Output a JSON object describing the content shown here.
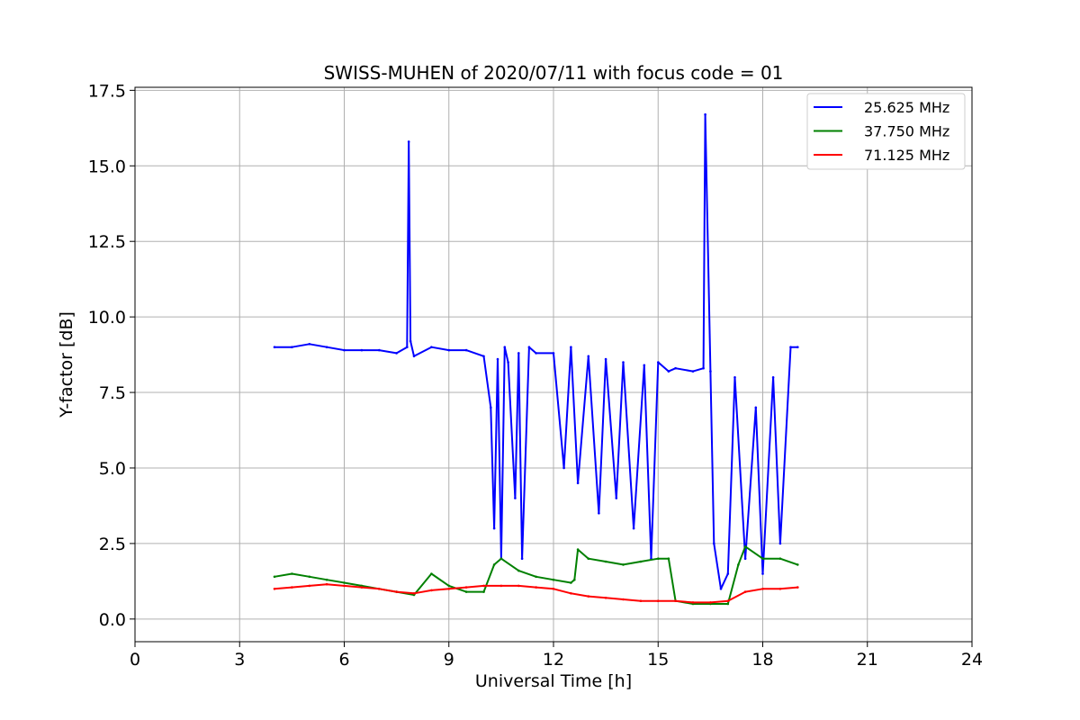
{
  "chart_data": {
    "type": "line",
    "title": "SWISS-MUHEN of 2020/07/11 with focus code = 01",
    "xlabel": "Universal Time [h]",
    "ylabel": "Y-factor [dB]",
    "xlim": [
      0,
      24
    ],
    "ylim": [
      -0.75,
      17.6
    ],
    "xticks": [
      0,
      3,
      6,
      9,
      12,
      15,
      18,
      21,
      24
    ],
    "xtick_labels": [
      "0",
      "3",
      "6",
      "9",
      "12",
      "15",
      "18",
      "21",
      "24"
    ],
    "yticks": [
      0,
      2.5,
      5,
      7.5,
      10,
      12.5,
      15,
      17.5
    ],
    "ytick_labels": [
      "0.0",
      "2.5",
      "5.0",
      "7.5",
      "10.0",
      "12.5",
      "15.0",
      "17.5"
    ],
    "grid": true,
    "legend_position": "top-right",
    "series": [
      {
        "name": "25.625 MHz",
        "color": "#0000ff",
        "x": [
          4.0,
          4.5,
          5.0,
          5.5,
          6.0,
          6.5,
          7.0,
          7.5,
          7.8,
          7.85,
          7.9,
          8.0,
          8.5,
          9.0,
          9.5,
          10.0,
          10.2,
          10.3,
          10.4,
          10.5,
          10.6,
          10.7,
          10.9,
          11.0,
          11.1,
          11.3,
          11.5,
          12.0,
          12.3,
          12.5,
          12.7,
          13.0,
          13.3,
          13.5,
          13.8,
          14.0,
          14.3,
          14.6,
          14.8,
          15.0,
          15.3,
          15.5,
          16.0,
          16.3,
          16.35,
          16.5,
          16.6,
          16.8,
          17.0,
          17.2,
          17.5,
          17.8,
          18.0,
          18.3,
          18.5,
          18.8,
          19.0
        ],
        "y": [
          9.0,
          9.0,
          9.1,
          9.0,
          8.9,
          8.9,
          8.9,
          8.8,
          9.0,
          15.8,
          9.2,
          8.7,
          9.0,
          8.9,
          8.9,
          8.7,
          7.0,
          3.0,
          8.6,
          2.0,
          9.0,
          8.5,
          4.0,
          8.8,
          2.0,
          9.0,
          8.8,
          8.8,
          5.0,
          9.0,
          4.5,
          8.7,
          3.5,
          8.6,
          4.0,
          8.5,
          3.0,
          8.4,
          2.0,
          8.5,
          8.2,
          8.3,
          8.2,
          8.3,
          16.7,
          8.2,
          2.5,
          1.0,
          1.5,
          8.0,
          2.0,
          7.0,
          1.5,
          8.0,
          2.5,
          9.0,
          9.0
        ]
      },
      {
        "name": "37.750 MHz",
        "color": "#008000",
        "x": [
          4.0,
          4.5,
          5.0,
          5.5,
          6.0,
          6.5,
          7.0,
          7.5,
          8.0,
          8.5,
          9.0,
          9.5,
          10.0,
          10.3,
          10.5,
          11.0,
          11.5,
          12.0,
          12.5,
          12.6,
          12.7,
          13.0,
          13.5,
          14.0,
          14.5,
          15.0,
          15.3,
          15.5,
          16.0,
          16.5,
          17.0,
          17.3,
          17.5,
          18.0,
          18.5,
          19.0
        ],
        "y": [
          1.4,
          1.5,
          1.4,
          1.3,
          1.2,
          1.1,
          1.0,
          0.9,
          0.8,
          1.5,
          1.1,
          0.9,
          0.9,
          1.8,
          2.0,
          1.6,
          1.4,
          1.3,
          1.2,
          1.3,
          2.3,
          2.0,
          1.9,
          1.8,
          1.9,
          2.0,
          2.0,
          0.6,
          0.5,
          0.5,
          0.5,
          1.8,
          2.4,
          2.0,
          2.0,
          1.8
        ]
      },
      {
        "name": "71.125 MHz",
        "color": "#ff0000",
        "x": [
          4.0,
          4.5,
          5.0,
          5.5,
          6.0,
          6.5,
          7.0,
          7.5,
          8.0,
          8.5,
          9.0,
          9.5,
          10.0,
          10.5,
          11.0,
          11.5,
          12.0,
          12.5,
          13.0,
          13.5,
          14.0,
          14.5,
          15.0,
          15.5,
          16.0,
          16.5,
          17.0,
          17.5,
          18.0,
          18.5,
          19.0
        ],
        "y": [
          1.0,
          1.05,
          1.1,
          1.15,
          1.1,
          1.05,
          1.0,
          0.9,
          0.85,
          0.95,
          1.0,
          1.05,
          1.1,
          1.1,
          1.1,
          1.05,
          1.0,
          0.85,
          0.75,
          0.7,
          0.65,
          0.6,
          0.6,
          0.6,
          0.55,
          0.55,
          0.6,
          0.9,
          1.0,
          1.0,
          1.05
        ]
      }
    ]
  }
}
